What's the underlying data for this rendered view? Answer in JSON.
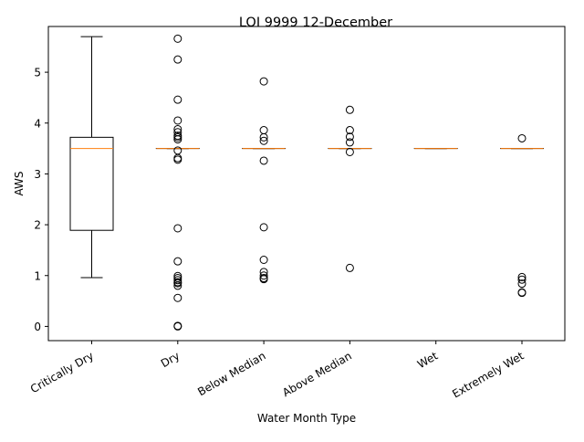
{
  "chart_data": {
    "type": "box",
    "title": "LOI 9999 12-December",
    "xlabel": "Water Month Type",
    "ylabel": "AWS",
    "ylim": [
      -0.28,
      5.9
    ],
    "yticks": [
      0,
      1,
      2,
      3,
      4,
      5
    ],
    "grid": false,
    "colors": {
      "box": "#000000",
      "median": "#ff7f0e",
      "axes": "#000000",
      "background": "#ffffff"
    },
    "categories": [
      "Critically Dry",
      "Dry",
      "Below Median",
      "Above Median",
      "Wet",
      "Extremely Wet"
    ],
    "boxes": [
      {
        "category": "Critically Dry",
        "whisker_low": 0.96,
        "q1": 1.89,
        "median": 3.5,
        "q3": 3.72,
        "whisker_high": 5.7,
        "outliers": []
      },
      {
        "category": "Dry",
        "whisker_low": 3.5,
        "q1": 3.5,
        "median": 3.5,
        "q3": 3.5,
        "whisker_high": 3.5,
        "outliers": [
          5.66,
          5.25,
          4.46,
          4.05,
          3.88,
          3.82,
          3.75,
          3.72,
          3.68,
          3.46,
          3.31,
          3.28,
          1.93,
          1.28,
          0.99,
          0.95,
          0.91,
          0.87,
          0.85,
          0.8,
          0.56,
          0.01,
          0.0
        ]
      },
      {
        "category": "Below Median",
        "whisker_low": 3.5,
        "q1": 3.5,
        "median": 3.5,
        "q3": 3.5,
        "whisker_high": 3.5,
        "outliers": [
          4.82,
          3.86,
          3.72,
          3.65,
          3.26,
          1.95,
          1.31,
          1.07,
          1.0,
          0.95,
          0.93
        ]
      },
      {
        "category": "Above Median",
        "whisker_low": 3.5,
        "q1": 3.5,
        "median": 3.5,
        "q3": 3.5,
        "whisker_high": 3.5,
        "outliers": [
          4.26,
          3.86,
          3.73,
          3.62,
          3.43,
          1.15
        ]
      },
      {
        "category": "Wet",
        "whisker_low": 3.5,
        "q1": 3.5,
        "median": 3.5,
        "q3": 3.5,
        "whisker_high": 3.5,
        "outliers": []
      },
      {
        "category": "Extremely Wet",
        "whisker_low": 3.5,
        "q1": 3.5,
        "median": 3.5,
        "q3": 3.5,
        "whisker_high": 3.5,
        "outliers": [
          3.7,
          0.97,
          0.92,
          0.84,
          0.67,
          0.66
        ]
      }
    ]
  }
}
